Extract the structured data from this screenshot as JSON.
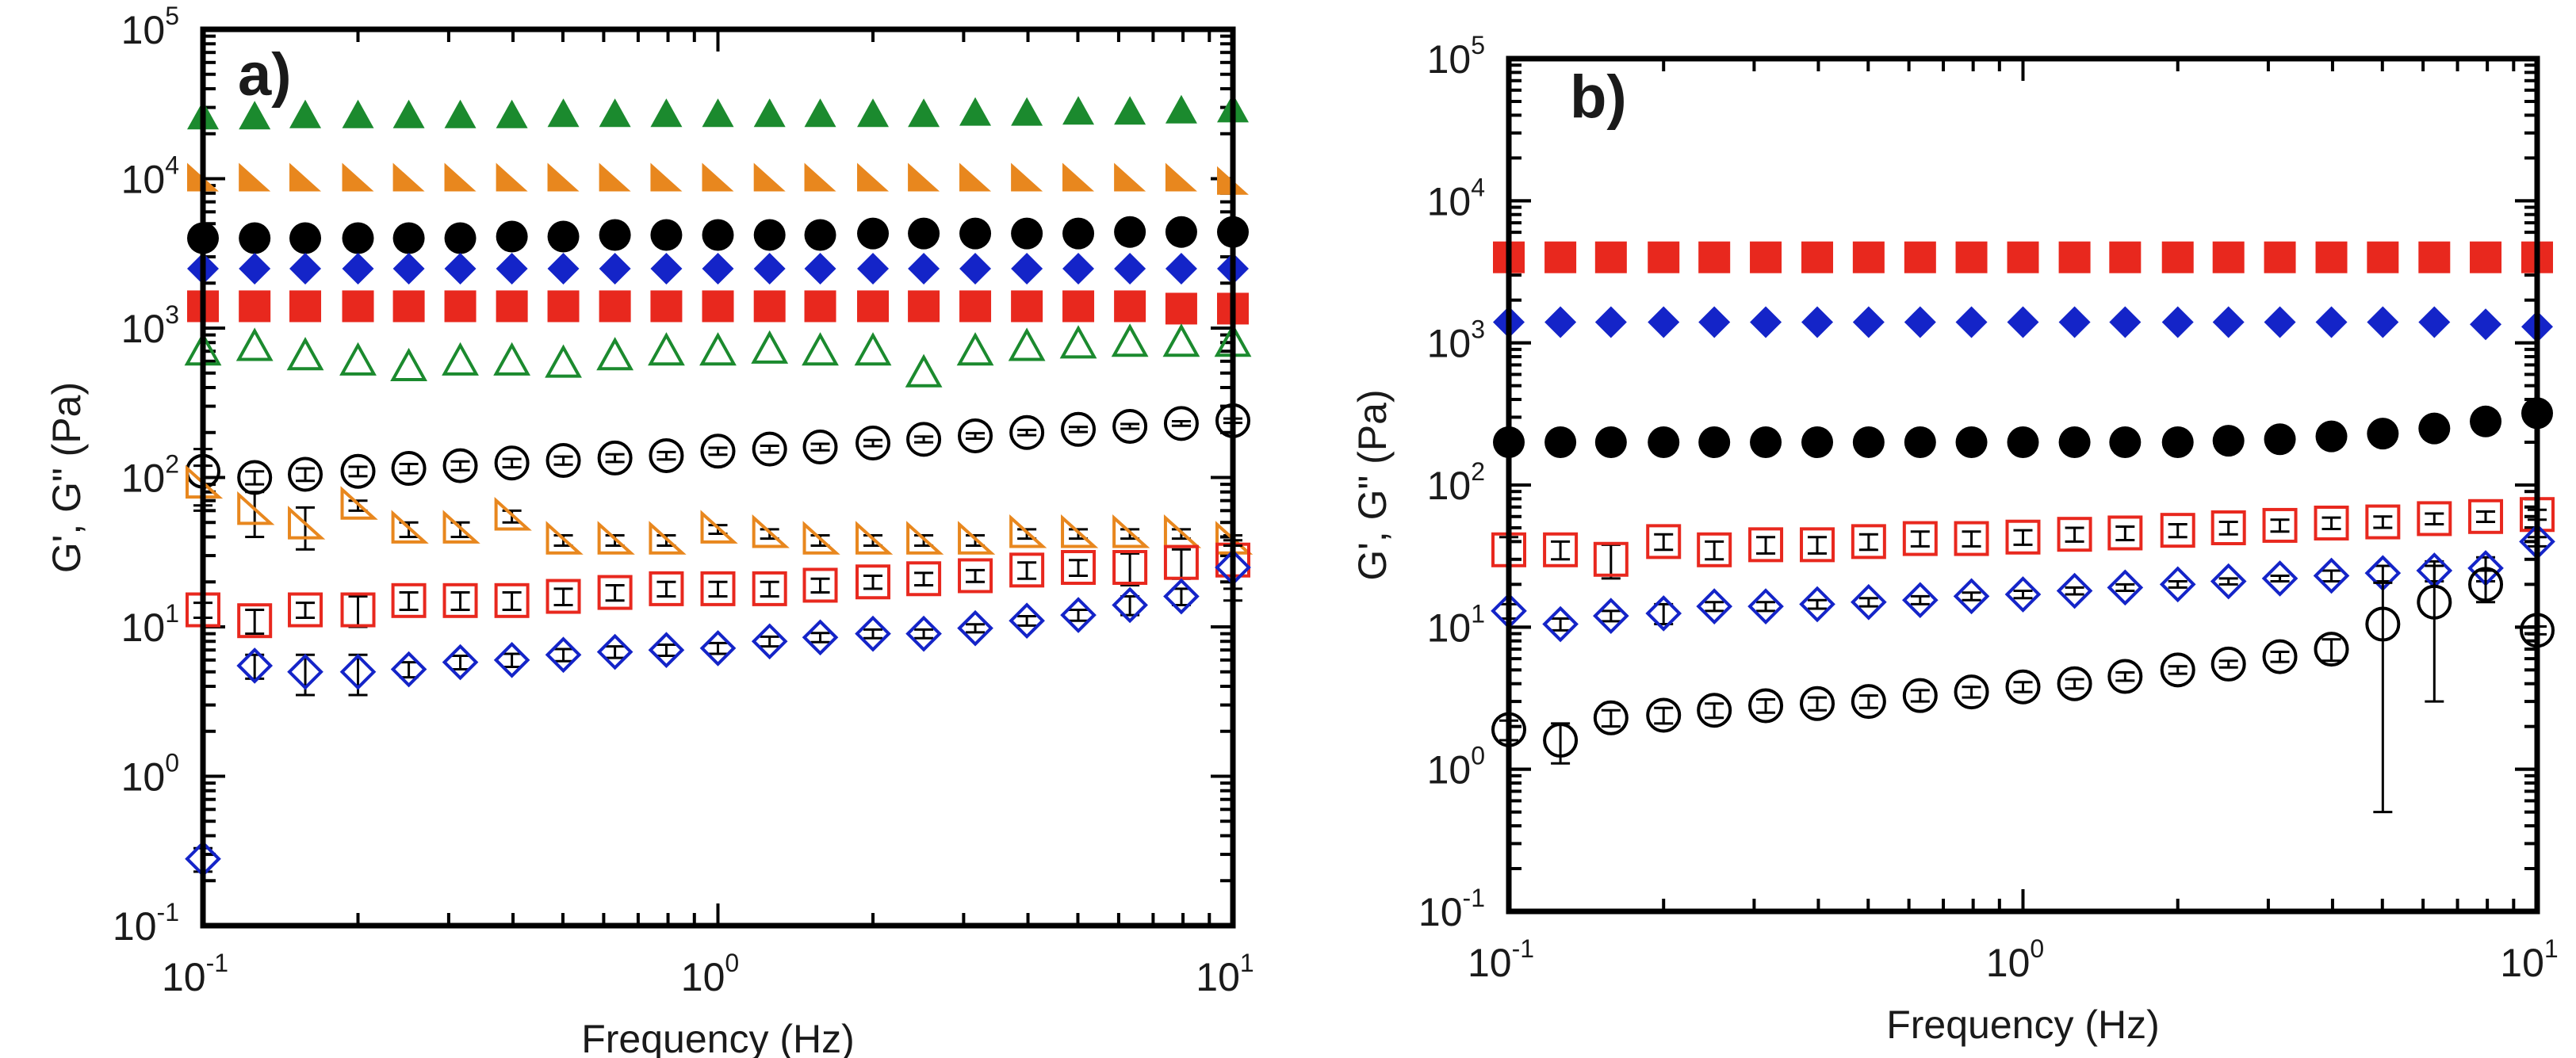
{
  "figure": {
    "description_free": true
  },
  "marker_styles": {
    "circle": {
      "color": "#000000"
    },
    "square": {
      "color": "#e8281e"
    },
    "diamond": {
      "color": "#1424c8"
    },
    "triangle": {
      "color": "#1b8a2e"
    },
    "right-triangle": {
      "color": "#e8871e"
    }
  },
  "chart_data": [
    {
      "type": "scatter",
      "title": "",
      "panel_label": "a)",
      "xlabel": "Frequency (Hz)",
      "ylabel": "G', G\" (Pa)",
      "xscale": "log",
      "yscale": "log",
      "xlim": [
        0.1,
        10
      ],
      "ylim": [
        0.1,
        100000
      ],
      "x_tick_labels": [
        {
          "base": "10",
          "exp": "-1"
        },
        {
          "base": "10",
          "exp": "0"
        },
        {
          "base": "10",
          "exp": "1"
        }
      ],
      "y_tick_labels": [
        {
          "base": "10",
          "exp": "-1"
        },
        {
          "base": "10",
          "exp": "0"
        },
        {
          "base": "10",
          "exp": "1"
        },
        {
          "base": "10",
          "exp": "2"
        },
        {
          "base": "10",
          "exp": "3"
        },
        {
          "base": "10",
          "exp": "4"
        },
        {
          "base": "10",
          "exp": "5"
        }
      ],
      "x": [
        0.1,
        0.126,
        0.158,
        0.2,
        0.251,
        0.316,
        0.398,
        0.501,
        0.631,
        0.794,
        1.0,
        1.26,
        1.58,
        2.0,
        2.51,
        3.16,
        3.98,
        5.01,
        6.31,
        7.94,
        10.0
      ],
      "series": [
        {
          "name": "green filled triangle",
          "marker": "triangle",
          "filled": true,
          "color": "#1b8a2e",
          "values": [
            26000,
            26000,
            26500,
            26500,
            26500,
            26500,
            26500,
            27000,
            27000,
            27000,
            27000,
            27000,
            27000,
            27000,
            27000,
            27500,
            27500,
            28000,
            28000,
            28500,
            29000
          ],
          "err": []
        },
        {
          "name": "orange filled triangle",
          "marker": "right-triangle",
          "filled": true,
          "color": "#e8871e",
          "values": [
            10000,
            10000,
            10000,
            10000,
            10000,
            10000,
            10000,
            10000,
            10000,
            10000,
            10000,
            10000,
            10000,
            10000,
            10000,
            10000,
            10000,
            10000,
            10000,
            10000,
            9500
          ],
          "err": []
        },
        {
          "name": "black filled circle",
          "marker": "circle",
          "filled": true,
          "color": "#000000",
          "values": [
            4000,
            4000,
            4000,
            4000,
            4000,
            4000,
            4100,
            4100,
            4200,
            4200,
            4200,
            4200,
            4200,
            4300,
            4300,
            4300,
            4300,
            4300,
            4400,
            4400,
            4400
          ],
          "err": []
        },
        {
          "name": "blue filled diamond",
          "marker": "diamond",
          "filled": true,
          "color": "#1424c8",
          "values": [
            2500,
            2500,
            2500,
            2500,
            2500,
            2500,
            2500,
            2500,
            2500,
            2500,
            2500,
            2500,
            2500,
            2500,
            2500,
            2500,
            2500,
            2500,
            2500,
            2500,
            2500
          ],
          "err": []
        },
        {
          "name": "red filled square",
          "marker": "square",
          "filled": true,
          "color": "#e8281e",
          "values": [
            1400,
            1400,
            1400,
            1400,
            1400,
            1400,
            1400,
            1400,
            1400,
            1400,
            1400,
            1400,
            1400,
            1400,
            1400,
            1400,
            1400,
            1400,
            1400,
            1350,
            1350
          ],
          "err": []
        },
        {
          "name": "green open triangle",
          "marker": "triangle",
          "filled": false,
          "color": "#1b8a2e",
          "values": [
            700,
            750,
            650,
            600,
            550,
            600,
            600,
            580,
            650,
            700,
            700,
            720,
            700,
            700,
            500,
            700,
            750,
            780,
            800,
            800,
            800
          ],
          "err": []
        },
        {
          "name": "black open circle",
          "marker": "circle",
          "filled": false,
          "color": "#000000",
          "values": [
            110,
            100,
            105,
            110,
            115,
            120,
            125,
            130,
            135,
            140,
            150,
            155,
            160,
            170,
            180,
            190,
            200,
            210,
            220,
            230,
            240
          ],
          "err": [
            45,
            10,
            10,
            8,
            8,
            8,
            8,
            8,
            8,
            8,
            8,
            8,
            8,
            8,
            8,
            8,
            8,
            8,
            8,
            8,
            8
          ]
        },
        {
          "name": "orange open triangle",
          "marker": "right-triangle",
          "filled": false,
          "color": "#e8871e",
          "values": [
            90,
            60,
            48,
            65,
            45,
            45,
            55,
            38,
            38,
            38,
            45,
            42,
            38,
            38,
            38,
            38,
            42,
            42,
            42,
            42,
            38
          ],
          "err": [
            30,
            20,
            15,
            5,
            5,
            5,
            5,
            3,
            3,
            3,
            3,
            3,
            3,
            3,
            3,
            3,
            3,
            3,
            3,
            3,
            3
          ]
        },
        {
          "name": "red open square",
          "marker": "square",
          "filled": false,
          "color": "#e8281e",
          "values": [
            13,
            11,
            13,
            13,
            15,
            15,
            15,
            16,
            17,
            18,
            18,
            18,
            19,
            20,
            21,
            22,
            24,
            25,
            25,
            27,
            28
          ],
          "err": [
            1.5,
            2,
            1.5,
            3,
            2,
            2,
            2,
            2,
            2,
            2,
            2,
            2,
            2,
            2,
            2,
            2,
            3,
            3,
            6,
            6,
            10
          ]
        },
        {
          "name": "blue open diamond",
          "marker": "diamond",
          "filled": false,
          "color": "#1424c8",
          "values": [
            0.28,
            5.5,
            5,
            5,
            5.2,
            5.8,
            6,
            6.5,
            6.8,
            7,
            7.2,
            8,
            8.5,
            9,
            9,
            9.8,
            11,
            12,
            14,
            16,
            25
          ],
          "err": [
            0.05,
            1,
            1.5,
            1.5,
            0.6,
            0.6,
            0.6,
            0.6,
            0.6,
            0.6,
            0.6,
            0.6,
            0.6,
            0.6,
            0.6,
            0.6,
            0.8,
            1,
            2,
            2,
            10
          ]
        }
      ]
    },
    {
      "type": "scatter",
      "title": "",
      "panel_label": "b)",
      "xlabel": "Frequency (Hz)",
      "ylabel": "G', G\" (Pa)",
      "xscale": "log",
      "yscale": "log",
      "xlim": [
        0.1,
        10
      ],
      "ylim": [
        0.1,
        100000
      ],
      "x_tick_labels": [
        {
          "base": "10",
          "exp": "-1"
        },
        {
          "base": "10",
          "exp": "0"
        },
        {
          "base": "10",
          "exp": "1"
        }
      ],
      "y_tick_labels": [
        {
          "base": "10",
          "exp": "-1"
        },
        {
          "base": "10",
          "exp": "0"
        },
        {
          "base": "10",
          "exp": "1"
        },
        {
          "base": "10",
          "exp": "2"
        },
        {
          "base": "10",
          "exp": "3"
        },
        {
          "base": "10",
          "exp": "4"
        },
        {
          "base": "10",
          "exp": "5"
        }
      ],
      "x": [
        0.1,
        0.126,
        0.158,
        0.2,
        0.251,
        0.316,
        0.398,
        0.501,
        0.631,
        0.794,
        1.0,
        1.26,
        1.58,
        2.0,
        2.51,
        3.16,
        3.98,
        5.01,
        6.31,
        7.94,
        10.0
      ],
      "series": [
        {
          "name": "red filled square",
          "marker": "square",
          "filled": true,
          "color": "#e8281e",
          "values": [
            4000,
            4000,
            4000,
            4000,
            4000,
            4000,
            4000,
            4000,
            4000,
            4000,
            4000,
            4000,
            4000,
            4000,
            4000,
            4000,
            4000,
            4000,
            4000,
            4000,
            4000
          ],
          "err": []
        },
        {
          "name": "blue filled diamond",
          "marker": "diamond",
          "filled": true,
          "color": "#1424c8",
          "values": [
            1400,
            1400,
            1400,
            1400,
            1400,
            1400,
            1400,
            1400,
            1400,
            1400,
            1400,
            1400,
            1400,
            1400,
            1400,
            1400,
            1400,
            1400,
            1400,
            1350,
            1300
          ],
          "err": []
        },
        {
          "name": "black filled circle",
          "marker": "circle",
          "filled": true,
          "color": "#000000",
          "values": [
            200,
            200,
            200,
            200,
            200,
            200,
            200,
            200,
            200,
            200,
            200,
            200,
            200,
            200,
            205,
            210,
            220,
            230,
            250,
            280,
            320
          ],
          "err": []
        },
        {
          "name": "red open square",
          "marker": "square",
          "filled": false,
          "color": "#e8281e",
          "values": [
            35,
            35,
            30,
            40,
            35,
            38,
            38,
            40,
            42,
            42,
            43,
            45,
            46,
            48,
            50,
            52,
            54,
            55,
            58,
            60,
            62
          ],
          "err": [
            8,
            5,
            8,
            5,
            5,
            5,
            5,
            5,
            5,
            5,
            5,
            5,
            5,
            5,
            5,
            5,
            5,
            5,
            5,
            5,
            5
          ]
        },
        {
          "name": "blue open diamond",
          "marker": "diamond",
          "filled": false,
          "color": "#1424c8",
          "values": [
            13,
            10.5,
            12,
            12.5,
            14,
            14,
            14.5,
            15,
            15.5,
            16.5,
            17,
            18,
            19,
            20,
            21,
            22,
            23,
            24,
            25,
            26,
            40
          ],
          "err": [
            1.5,
            1,
            1,
            2,
            1,
            1,
            1,
            1,
            1,
            1,
            1,
            1,
            1,
            1,
            1,
            1,
            2,
            3,
            4,
            5,
            3
          ]
        },
        {
          "name": "black open circle",
          "marker": "circle",
          "filled": false,
          "color": "#000000",
          "values": [
            1.9,
            1.6,
            2.3,
            2.4,
            2.6,
            2.8,
            2.9,
            3.0,
            3.3,
            3.5,
            3.8,
            4.0,
            4.5,
            5.0,
            5.5,
            6.2,
            7.0,
            10.5,
            15.0,
            20.0,
            9.5
          ],
          "err": [
            0.3,
            0.5,
            0.3,
            0.3,
            0.3,
            0.3,
            0.3,
            0.3,
            0.3,
            0.3,
            0.3,
            0.3,
            0.3,
            0.3,
            0.3,
            0.5,
            1.2,
            10.0,
            12.0,
            5.0,
            0.6
          ]
        }
      ]
    }
  ]
}
